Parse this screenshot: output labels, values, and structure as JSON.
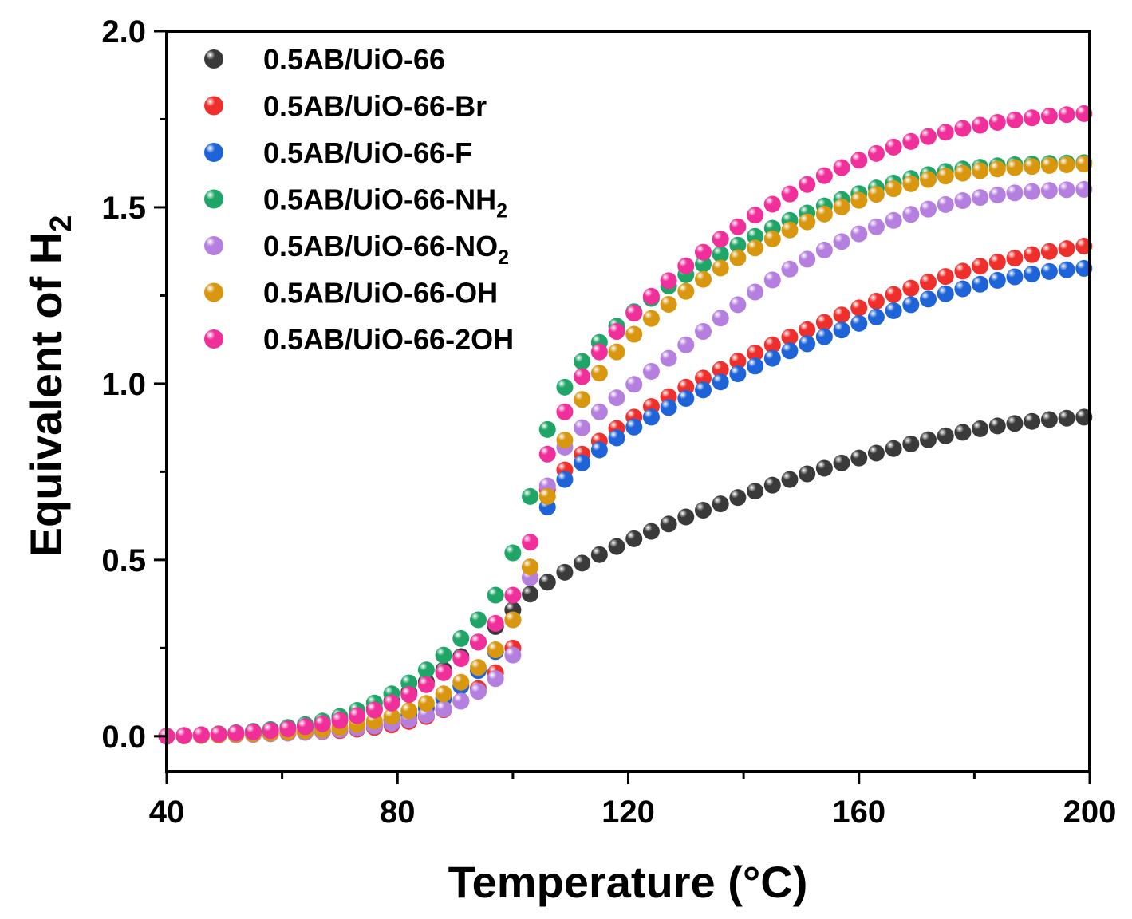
{
  "chart_data": {
    "type": "scatter",
    "title": "",
    "xlabel": "Temperature (°C)",
    "ylabel_main": "Equivalent of H",
    "ylabel_sub": "2",
    "xlim": [
      40,
      200
    ],
    "ylim": [
      -0.1,
      2.0
    ],
    "xticks": [
      "40",
      "80",
      "120",
      "160",
      "200"
    ],
    "yticks": [
      "0.0",
      "0.5",
      "1.0",
      "1.5",
      "2.0"
    ],
    "legend_position": "top-left",
    "x": [
      40.0,
      43.0,
      46.0,
      49.0,
      52.0,
      55.0,
      58.0,
      61.0,
      64.0,
      67.0,
      70.0,
      73.0,
      76.0,
      79.0,
      82.0,
      85.0,
      88.0,
      91.0,
      94.0,
      97.0,
      100.0,
      103.0,
      106.0,
      109.0,
      112.0,
      115.0,
      118.0,
      121.0,
      124.0,
      127.0,
      130.0,
      133.0,
      136.0,
      139.0,
      142.0,
      145.0,
      148.0,
      151.0,
      154.0,
      157.0,
      160.0,
      163.0,
      166.0,
      169.0,
      172.0,
      175.0,
      178.0,
      181.0,
      184.0,
      187.0,
      190.0,
      193.0,
      196.0,
      199.0
    ],
    "series": [
      {
        "name": "0.5AB/UiO-66",
        "name_main": "0.5AB/UiO-66",
        "name_sub": "",
        "name_tail": "",
        "color": "#3a3a3a",
        "values": [
          0.0,
          0.002,
          0.004,
          0.006,
          0.009,
          0.012,
          0.016,
          0.021,
          0.028,
          0.036,
          0.047,
          0.061,
          0.078,
          0.099,
          0.124,
          0.154,
          0.188,
          0.226,
          0.267,
          0.311,
          0.358,
          0.403,
          0.437,
          0.465,
          0.491,
          0.515,
          0.538,
          0.56,
          0.581,
          0.602,
          0.622,
          0.641,
          0.659,
          0.677,
          0.695,
          0.712,
          0.728,
          0.744,
          0.76,
          0.775,
          0.789,
          0.803,
          0.816,
          0.829,
          0.841,
          0.852,
          0.862,
          0.872,
          0.88,
          0.887,
          0.893,
          0.898,
          0.902,
          0.905
        ]
      },
      {
        "name": "0.5AB/UiO-66-Br",
        "name_main": "0.5AB/UiO-66-Br",
        "name_sub": "",
        "name_tail": "",
        "color": "#ee2f2c",
        "values": [
          0.0,
          0.001,
          0.002,
          0.003,
          0.004,
          0.005,
          0.007,
          0.009,
          0.011,
          0.013,
          0.016,
          0.02,
          0.025,
          0.032,
          0.042,
          0.056,
          0.075,
          0.1,
          0.135,
          0.18,
          0.25,
          0.45,
          0.7,
          0.755,
          0.8,
          0.837,
          0.873,
          0.905,
          0.935,
          0.963,
          0.99,
          1.016,
          1.04,
          1.064,
          1.087,
          1.11,
          1.132,
          1.153,
          1.174,
          1.195,
          1.215,
          1.234,
          1.253,
          1.271,
          1.288,
          1.304,
          1.319,
          1.333,
          1.345,
          1.356,
          1.366,
          1.375,
          1.383,
          1.39
        ]
      },
      {
        "name": "0.5AB/UiO-66-F",
        "name_main": "0.5AB/UiO-66-F",
        "name_sub": "",
        "name_tail": "",
        "color": "#1e63d8",
        "values": [
          0.0,
          0.001,
          0.002,
          0.003,
          0.004,
          0.006,
          0.008,
          0.01,
          0.013,
          0.016,
          0.02,
          0.026,
          0.034,
          0.045,
          0.06,
          0.08,
          0.107,
          0.142,
          0.186,
          0.24,
          0.33,
          0.48,
          0.65,
          0.728,
          0.775,
          0.812,
          0.846,
          0.877,
          0.905,
          0.932,
          0.958,
          0.982,
          1.005,
          1.028,
          1.05,
          1.072,
          1.093,
          1.113,
          1.133,
          1.152,
          1.171,
          1.189,
          1.207,
          1.224,
          1.24,
          1.255,
          1.269,
          1.282,
          1.293,
          1.303,
          1.311,
          1.318,
          1.323,
          1.327
        ]
      },
      {
        "name": "0.5AB/UiO-66-NH2",
        "name_main": "0.5AB/UiO-66-NH",
        "name_sub": "2",
        "name_tail": "",
        "color": "#1ea567",
        "values": [
          0.0,
          0.002,
          0.004,
          0.007,
          0.01,
          0.014,
          0.019,
          0.025,
          0.033,
          0.043,
          0.056,
          0.073,
          0.094,
          0.12,
          0.151,
          0.188,
          0.23,
          0.277,
          0.33,
          0.4,
          0.52,
          0.68,
          0.87,
          0.99,
          1.063,
          1.117,
          1.163,
          1.204,
          1.242,
          1.277,
          1.309,
          1.339,
          1.367,
          1.393,
          1.418,
          1.441,
          1.463,
          1.484,
          1.504,
          1.522,
          1.539,
          1.555,
          1.569,
          1.582,
          1.593,
          1.602,
          1.609,
          1.614,
          1.618,
          1.621,
          1.623,
          1.625,
          1.626,
          1.627
        ]
      },
      {
        "name": "0.5AB/UiO-66-NO2",
        "name_main": "0.5AB/UiO-66-NO",
        "name_sub": "2",
        "name_tail": "",
        "color": "#b57fe0",
        "values": [
          0.0,
          0.001,
          0.002,
          0.003,
          0.004,
          0.005,
          0.007,
          0.009,
          0.011,
          0.014,
          0.018,
          0.023,
          0.029,
          0.037,
          0.047,
          0.06,
          0.077,
          0.099,
          0.127,
          0.163,
          0.23,
          0.45,
          0.71,
          0.82,
          0.875,
          0.92,
          0.96,
          0.998,
          1.035,
          1.072,
          1.11,
          1.148,
          1.186,
          1.224,
          1.26,
          1.294,
          1.325,
          1.353,
          1.379,
          1.403,
          1.425,
          1.445,
          1.463,
          1.48,
          1.495,
          1.508,
          1.519,
          1.528,
          1.535,
          1.541,
          1.545,
          1.548,
          1.55,
          1.551
        ]
      },
      {
        "name": "0.5AB/UiO-66-OH",
        "name_main": "0.5AB/UiO-66-OH",
        "name_sub": "",
        "name_tail": "",
        "color": "#d8970f",
        "values": [
          0.0,
          0.001,
          0.002,
          0.003,
          0.005,
          0.007,
          0.009,
          0.012,
          0.015,
          0.019,
          0.025,
          0.033,
          0.043,
          0.056,
          0.072,
          0.093,
          0.12,
          0.153,
          0.195,
          0.245,
          0.33,
          0.48,
          0.68,
          0.84,
          0.955,
          1.03,
          1.09,
          1.14,
          1.185,
          1.225,
          1.262,
          1.296,
          1.328,
          1.357,
          1.385,
          1.411,
          1.436,
          1.459,
          1.481,
          1.501,
          1.52,
          1.537,
          1.553,
          1.567,
          1.579,
          1.589,
          1.597,
          1.604,
          1.609,
          1.613,
          1.616,
          1.619,
          1.621,
          1.623
        ]
      },
      {
        "name": "0.5AB/UiO-66-2OH",
        "name_main": "0.5AB/UiO-66-2OH",
        "name_sub": "",
        "name_tail": "",
        "color": "#f02f9a",
        "values": [
          0.0,
          0.002,
          0.004,
          0.006,
          0.009,
          0.012,
          0.016,
          0.021,
          0.027,
          0.035,
          0.045,
          0.058,
          0.074,
          0.094,
          0.118,
          0.146,
          0.18,
          0.22,
          0.267,
          0.32,
          0.4,
          0.55,
          0.8,
          0.92,
          1.02,
          1.09,
          1.148,
          1.2,
          1.248,
          1.292,
          1.334,
          1.373,
          1.41,
          1.445,
          1.478,
          1.509,
          1.538,
          1.565,
          1.59,
          1.613,
          1.634,
          1.653,
          1.671,
          1.687,
          1.701,
          1.713,
          1.724,
          1.733,
          1.741,
          1.748,
          1.754,
          1.759,
          1.763,
          1.766
        ]
      }
    ]
  }
}
